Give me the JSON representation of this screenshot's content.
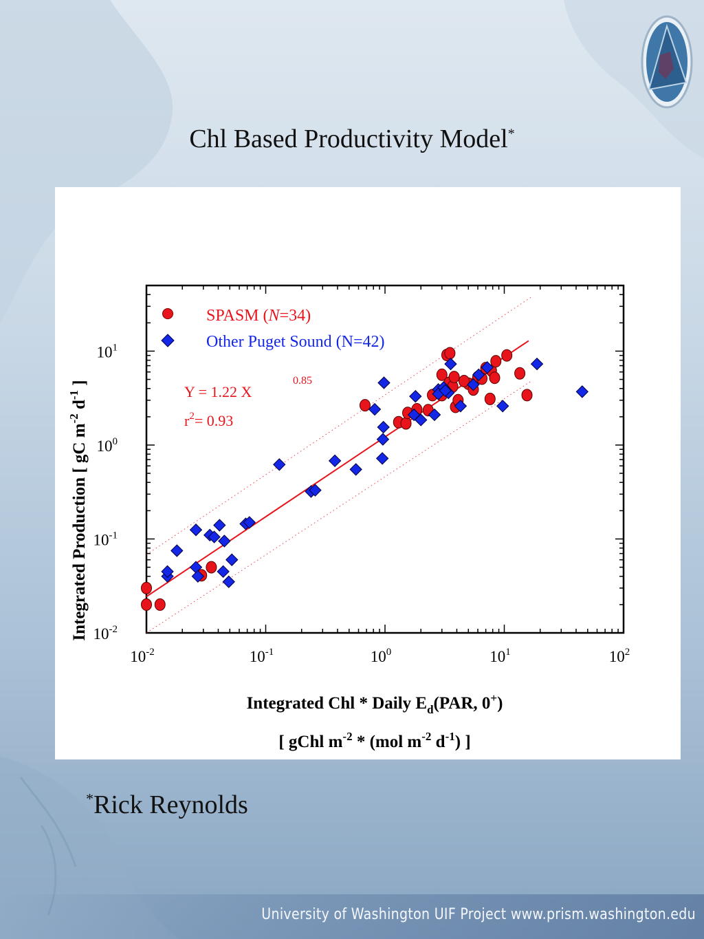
{
  "slide": {
    "title": "Chl Based Productivity Model",
    "title_marker": "*",
    "footnote_marker": "*",
    "footnote": "Rick Reynolds",
    "footer": "University of Washington  UIF Project  www.prism.washington.edu"
  },
  "chart_data": {
    "type": "scatter",
    "x_scale": "log",
    "y_scale": "log",
    "xlim": [
      0.01,
      100
    ],
    "ylim": [
      0.01,
      50
    ],
    "x_ticks": [
      {
        "base": "10",
        "exp": "-2"
      },
      {
        "base": "10",
        "exp": "-1"
      },
      {
        "base": "10",
        "exp": "0"
      },
      {
        "base": "10",
        "exp": "1"
      },
      {
        "base": "10",
        "exp": "2"
      }
    ],
    "y_ticks": [
      {
        "base": "10",
        "exp": "-2"
      },
      {
        "base": "10",
        "exp": "-1"
      },
      {
        "base": "10",
        "exp": "0"
      },
      {
        "base": "10",
        "exp": "1"
      }
    ],
    "xlabel": {
      "line1": [
        "Integrated Chl * Daily E",
        "d",
        "(PAR, 0",
        "+",
        ")"
      ],
      "line2": [
        "[ gChl m",
        "-2",
        " * (mol m",
        "-2",
        " d",
        "-1",
        ") ]"
      ]
    },
    "ylabel": [
      "Integrated Production [ gC m",
      "-2",
      " d",
      "-1",
      " ]"
    ],
    "legend_position": "top-left",
    "series": [
      {
        "name": "SPASM (N=34)",
        "name_parts": [
          "SPASM (",
          "N",
          "=34)"
        ],
        "marker": "circle",
        "color": "#e8141c",
        "points": [
          [
            0.01,
            0.03
          ],
          [
            0.01,
            0.02
          ],
          [
            0.013,
            0.02
          ],
          [
            0.029,
            0.041
          ],
          [
            0.035,
            0.05
          ],
          [
            0.68,
            2.65
          ],
          [
            1.3,
            1.75
          ],
          [
            1.5,
            1.7
          ],
          [
            1.55,
            2.2
          ],
          [
            1.85,
            2.4
          ],
          [
            2.3,
            2.35
          ],
          [
            2.5,
            3.4
          ],
          [
            3.0,
            5.6
          ],
          [
            3.3,
            9.1
          ],
          [
            3.5,
            9.5
          ],
          [
            3.45,
            4.6
          ],
          [
            3.7,
            4.2
          ],
          [
            3.8,
            5.3
          ],
          [
            3.9,
            2.55
          ],
          [
            4.1,
            3.0
          ],
          [
            5.0,
            4.5
          ],
          [
            5.5,
            3.9
          ],
          [
            6.0,
            5.3
          ],
          [
            6.5,
            5.1
          ],
          [
            7.0,
            6.6
          ],
          [
            7.8,
            6.2
          ],
          [
            8.5,
            7.8
          ],
          [
            8.3,
            5.2
          ],
          [
            7.6,
            3.1
          ],
          [
            10.5,
            9.0
          ],
          [
            13.5,
            5.8
          ],
          [
            15.5,
            3.4
          ],
          [
            4.6,
            4.8
          ],
          [
            3.0,
            3.4
          ]
        ]
      },
      {
        "name": "Other Puget Sound (N=42)",
        "name_parts": [
          "Other Puget Sound (N=42)"
        ],
        "marker": "diamond",
        "color": "#1426e6",
        "points": [
          [
            0.015,
            0.04
          ],
          [
            0.015,
            0.045
          ],
          [
            0.018,
            0.075
          ],
          [
            0.026,
            0.125
          ],
          [
            0.026,
            0.05
          ],
          [
            0.027,
            0.04
          ],
          [
            0.034,
            0.11
          ],
          [
            0.037,
            0.105
          ],
          [
            0.041,
            0.14
          ],
          [
            0.045,
            0.095
          ],
          [
            0.044,
            0.045
          ],
          [
            0.049,
            0.035
          ],
          [
            0.052,
            0.06
          ],
          [
            0.068,
            0.145
          ],
          [
            0.073,
            0.15
          ],
          [
            0.13,
            0.62
          ],
          [
            0.24,
            0.32
          ],
          [
            0.26,
            0.33
          ],
          [
            0.38,
            0.68
          ],
          [
            0.57,
            0.55
          ],
          [
            0.82,
            2.4
          ],
          [
            0.95,
            0.72
          ],
          [
            0.96,
            1.15
          ],
          [
            0.97,
            1.55
          ],
          [
            0.98,
            4.6
          ],
          [
            1.75,
            2.1
          ],
          [
            1.8,
            3.3
          ],
          [
            2.0,
            1.85
          ],
          [
            2.6,
            2.1
          ],
          [
            2.8,
            3.9
          ],
          [
            3.1,
            4.1
          ],
          [
            3.4,
            3.6
          ],
          [
            3.55,
            7.3
          ],
          [
            4.3,
            2.6
          ],
          [
            5.5,
            4.4
          ],
          [
            6.1,
            5.6
          ],
          [
            7.2,
            6.7
          ],
          [
            9.7,
            2.6
          ],
          [
            18.8,
            7.3
          ],
          [
            45,
            3.7
          ],
          [
            2.8,
            3.5
          ],
          [
            3.2,
            3.8
          ]
        ]
      }
    ],
    "fit": {
      "equation_parts": [
        "Y = 1.22 X",
        "0.85"
      ],
      "r2_parts": [
        "r",
        "2",
        "= 0.93"
      ],
      "a": 1.22,
      "b": 0.85,
      "x_range": [
        0.01,
        16
      ],
      "color": "#e8141c",
      "band_factor": 2.8
    }
  }
}
